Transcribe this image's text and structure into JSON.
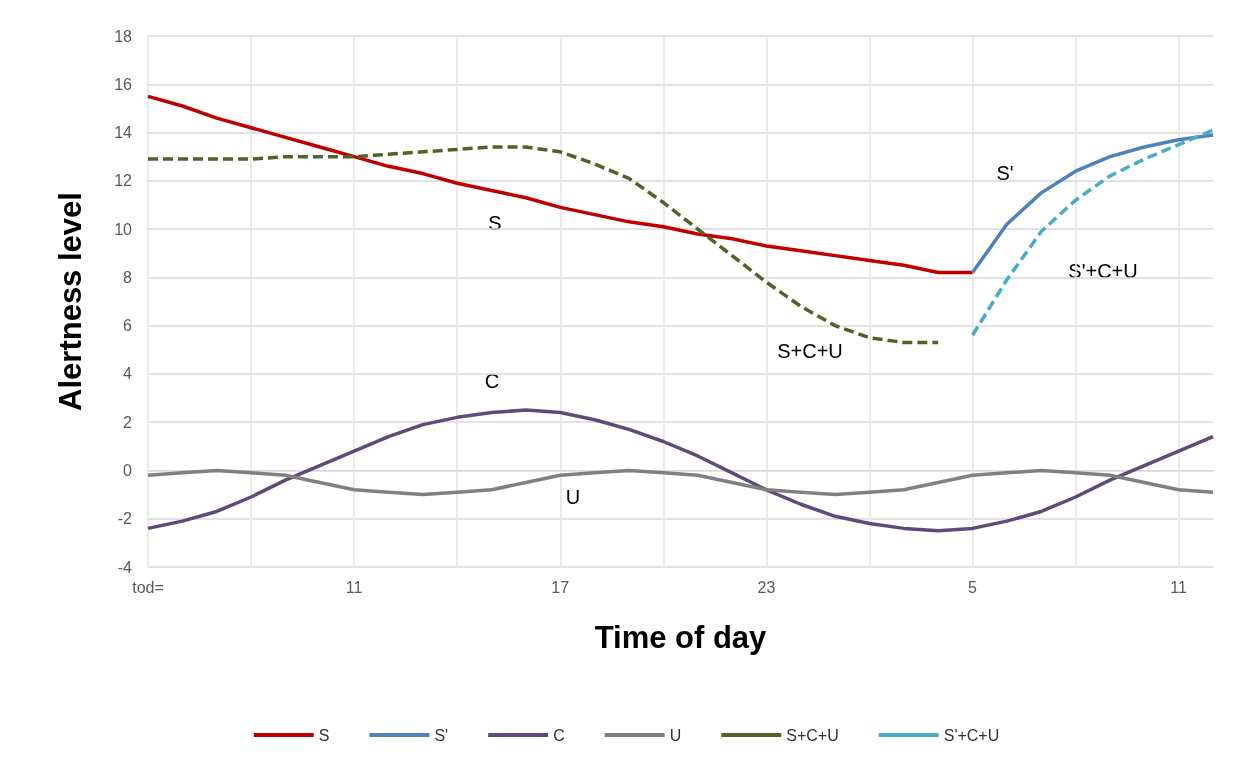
{
  "chart_data": {
    "type": "line",
    "xlabel": "Time of day",
    "ylabel": "Alertness level",
    "categories": [
      "tod=",
      null,
      null,
      null,
      null,
      null,
      "11",
      null,
      null,
      null,
      null,
      null,
      "17",
      null,
      null,
      null,
      null,
      null,
      "23",
      null,
      null,
      null,
      null,
      null,
      "5",
      null,
      null,
      null,
      null,
      null,
      "11",
      null
    ],
    "ylim": [
      -4,
      18
    ],
    "yticks": [
      -4,
      -2,
      0,
      2,
      4,
      6,
      8,
      10,
      12,
      14,
      16,
      18
    ],
    "grid": true,
    "legend": "bottom",
    "marker": "none",
    "series": [
      {
        "name": "S",
        "color": "#c00000",
        "line_style": "solid",
        "values": [
          15.5,
          15.1,
          14.6,
          14.2,
          13.8,
          13.4,
          13.0,
          12.6,
          12.3,
          11.9,
          11.6,
          11.3,
          10.9,
          10.6,
          10.3,
          10.1,
          9.8,
          9.6,
          9.3,
          9.1,
          8.9,
          8.7,
          8.5,
          8.2,
          8.2,
          null,
          null,
          null,
          null,
          null,
          null,
          null
        ]
      },
      {
        "name": "S'",
        "color": "#4f81bd",
        "line_style": "solid",
        "values": [
          null,
          null,
          null,
          null,
          null,
          null,
          null,
          null,
          null,
          null,
          null,
          null,
          null,
          null,
          null,
          null,
          null,
          null,
          null,
          null,
          null,
          null,
          null,
          null,
          8.2,
          10.2,
          11.5,
          12.4,
          13.0,
          13.4,
          13.7,
          13.9
        ]
      },
      {
        "name": "C",
        "color": "#604a7b",
        "line_style": "solid",
        "values": [
          -2.4,
          -2.1,
          -1.7,
          -1.1,
          -0.4,
          0.2,
          0.8,
          1.4,
          1.9,
          2.2,
          2.4,
          2.5,
          2.4,
          2.1,
          1.7,
          1.2,
          0.6,
          -0.1,
          -0.8,
          -1.4,
          -1.9,
          -2.2,
          -2.4,
          -2.5,
          -2.4,
          -2.1,
          -1.7,
          -1.1,
          -0.4,
          0.2,
          0.8,
          1.4
        ]
      },
      {
        "name": "U",
        "color": "#808080",
        "line_style": "solid",
        "values": [
          -0.2,
          -0.1,
          0,
          -0.1,
          -0.2,
          -0.5,
          -0.8,
          -0.9,
          -1,
          -0.9,
          -0.8,
          -0.5,
          -0.2,
          -0.1,
          0,
          -0.1,
          -0.2,
          -0.5,
          -0.8,
          -0.9,
          -1,
          -0.9,
          -0.8,
          -0.5,
          -0.2,
          -0.1,
          0,
          -0.1,
          -0.2,
          -0.5,
          -0.8,
          -0.9
        ]
      },
      {
        "name": "S+C+U",
        "color": "#4f6228",
        "line_style": "dashed",
        "values": [
          12.9,
          12.9,
          12.9,
          12.9,
          13.0,
          13.0,
          13.0,
          13.1,
          13.2,
          13.3,
          13.4,
          13.4,
          13.2,
          12.7,
          12.1,
          11.1,
          10.0,
          8.9,
          7.8,
          6.8,
          6.0,
          5.5,
          5.3,
          5.3,
          null,
          null,
          null,
          null,
          null,
          null,
          null,
          null
        ]
      },
      {
        "name": "S'+C+U",
        "color": "#4bacc6",
        "line_style": "dashed",
        "values": [
          null,
          null,
          null,
          null,
          null,
          null,
          null,
          null,
          null,
          null,
          null,
          null,
          null,
          null,
          null,
          null,
          null,
          null,
          null,
          null,
          null,
          null,
          null,
          null,
          5.6,
          7.9,
          9.9,
          11.2,
          12.2,
          12.9,
          13.5,
          14.1
        ]
      }
    ],
    "annotations": [
      "S",
      "C",
      "U",
      "S'",
      "S+C+U",
      "S'+C+U"
    ]
  }
}
